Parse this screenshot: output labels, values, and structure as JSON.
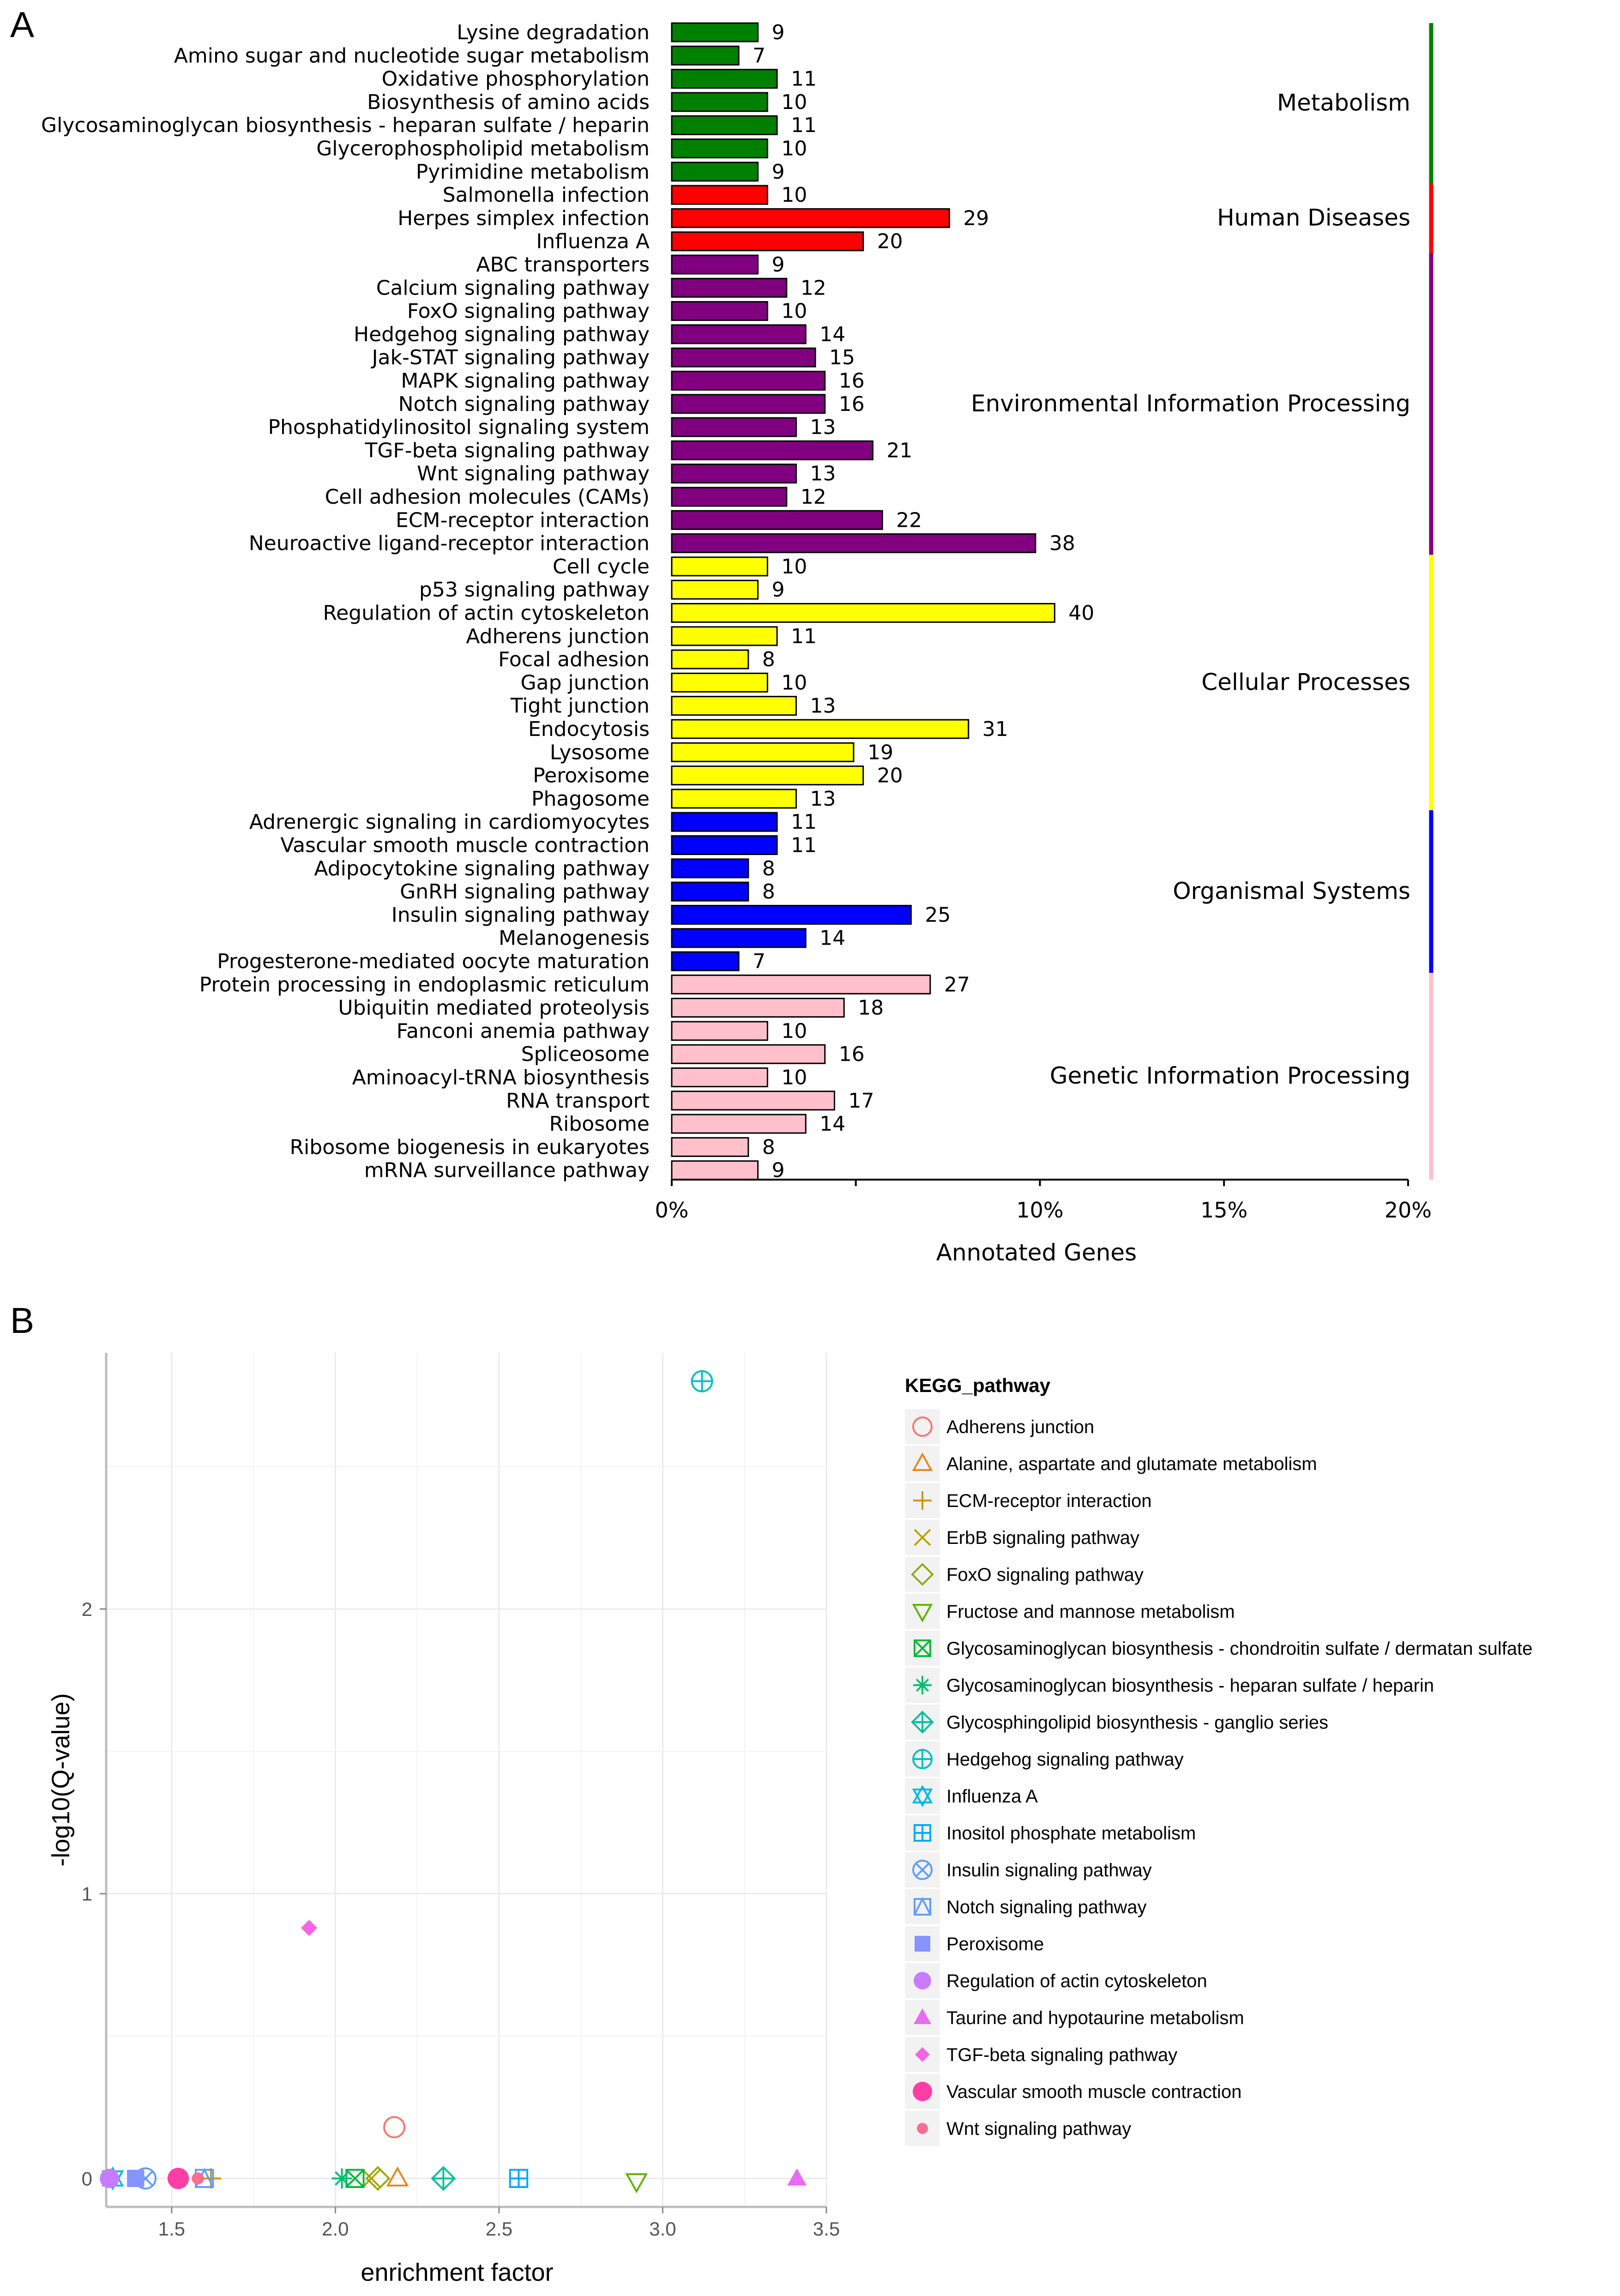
{
  "panel_labels": {
    "a": "A",
    "b": "B"
  },
  "chart_data": [
    {
      "type": "bar",
      "orientation": "horizontal",
      "xlabel": "Annotated Genes",
      "xlim": [
        0,
        20
      ],
      "x_ticks": [
        "0%",
        "10%",
        "15%",
        "20%"
      ],
      "x_tick_values": [
        0,
        10,
        15,
        20
      ],
      "groups": [
        {
          "name": "Metabolism",
          "color": "#008000",
          "rows": 7
        },
        {
          "name": "Human Diseases",
          "color": "#ff0000",
          "rows": 3
        },
        {
          "name": "Environmental Information Processing",
          "color": "#800080",
          "rows": 13
        },
        {
          "name": "Cellular Processes",
          "color": "#ffff00",
          "rows": 11
        },
        {
          "name": "Organismal Systems",
          "color": "#0000ff",
          "rows": 7
        },
        {
          "name": "Genetic Information Processing",
          "color": "#ffc0cb",
          "rows": 9
        }
      ],
      "categories": [
        "Lysine degradation",
        "Amino sugar and nucleotide sugar metabolism",
        "Oxidative phosphorylation",
        "Biosynthesis of amino acids",
        "Glycosaminoglycan biosynthesis - heparan sulfate / heparin",
        "Glycerophospholipid metabolism",
        "Pyrimidine metabolism",
        "Salmonella infection",
        "Herpes simplex infection",
        "Influenza A",
        "ABC transporters",
        "Calcium signaling pathway",
        "FoxO signaling pathway",
        "Hedgehog signaling pathway",
        "Jak-STAT signaling pathway",
        "MAPK signaling pathway",
        "Notch signaling pathway",
        "Phosphatidylinositol signaling system",
        "TGF-beta signaling pathway",
        "Wnt signaling pathway",
        "Cell adhesion molecules (CAMs)",
        "ECM-receptor interaction",
        "Neuroactive ligand-receptor interaction",
        "Cell cycle",
        "p53 signaling pathway",
        "Regulation of actin cytoskeleton",
        "Adherens junction",
        "Focal adhesion",
        "Gap junction",
        "Tight junction",
        "Endocytosis",
        "Lysosome",
        "Peroxisome",
        "Phagosome",
        "Adrenergic signaling in cardiomyocytes",
        "Vascular smooth muscle contraction",
        "Adipocytokine signaling pathway",
        "GnRH signaling pathway",
        "Insulin signaling pathway",
        "Melanogenesis",
        "Progesterone-mediated oocyte maturation",
        "Protein processing in endoplasmic reticulum",
        "Ubiquitin mediated proteolysis",
        "Fanconi anemia pathway",
        "Spliceosome",
        "Aminoacyl-tRNA biosynthesis",
        "RNA transport",
        "Ribosome",
        "Ribosome biogenesis in eukaryotes",
        "mRNA surveillance pathway"
      ],
      "values": [
        9,
        7,
        11,
        10,
        11,
        10,
        9,
        10,
        29,
        20,
        9,
        12,
        10,
        14,
        15,
        16,
        16,
        13,
        21,
        13,
        12,
        22,
        38,
        10,
        9,
        40,
        11,
        8,
        10,
        13,
        31,
        19,
        20,
        13,
        11,
        11,
        8,
        8,
        25,
        14,
        7,
        27,
        18,
        10,
        16,
        10,
        17,
        14,
        8,
        9
      ],
      "value_labels": [
        "9",
        "7",
        "11",
        "10",
        "11",
        "10",
        "9",
        "10",
        "29",
        "20",
        "9",
        "12",
        "10",
        "14",
        "15",
        "16",
        "16",
        "13",
        "21",
        "13",
        "12",
        "22",
        "38",
        "10",
        "9",
        "40",
        "11",
        "8",
        "10",
        "13",
        "31",
        "19",
        "20",
        "13",
        "11",
        "11",
        "8",
        "8",
        "25",
        "14",
        "7",
        "27",
        "18",
        "10",
        "16",
        "10",
        "17",
        "14",
        "8",
        "9"
      ],
      "percent_per_gene": 0.26
    },
    {
      "type": "scatter",
      "xlabel": "enrichment factor",
      "ylabel": "-log10(Q-value)",
      "xlim": [
        1.3,
        3.5
      ],
      "ylim": [
        -0.1,
        2.9
      ],
      "x_ticks": [
        1.5,
        2.0,
        2.5,
        3.0,
        3.5
      ],
      "x_tick_labels": [
        "1.5",
        "2.0",
        "2.5",
        "3.0",
        "3.5"
      ],
      "y_ticks": [
        0,
        1,
        2
      ],
      "y_tick_labels": [
        "0",
        "1",
        "2"
      ],
      "legend_title": "KEGG_pathway",
      "legend_position": "right",
      "series": [
        {
          "name": "Adherens junction",
          "shape": "circle-open",
          "color": "#f8766d",
          "x": 2.18,
          "y": 0.18
        },
        {
          "name": "Alanine, aspartate and glutamate metabolism",
          "shape": "triangle-open",
          "color": "#e7861b",
          "x": 2.19,
          "y": 0.0
        },
        {
          "name": "ECM-receptor interaction",
          "shape": "plus",
          "color": "#d39200",
          "x": 1.62,
          "y": 0.0
        },
        {
          "name": "ErbB signaling pathway",
          "shape": "cross",
          "color": "#b8a000",
          "x": 2.11,
          "y": 0.0
        },
        {
          "name": "FoxO signaling pathway",
          "shape": "diamond-open",
          "color": "#93aa00",
          "x": 2.13,
          "y": 0.0
        },
        {
          "name": "Fructose and mannose metabolism",
          "shape": "triangle-down-open",
          "color": "#5eb300",
          "x": 2.92,
          "y": -0.01
        },
        {
          "name": "Glycosaminoglycan biosynthesis - chondroitin sulfate / dermatan sulfate",
          "shape": "square-cross",
          "color": "#00ba38",
          "x": 2.06,
          "y": 0.0
        },
        {
          "name": "Glycosaminoglycan biosynthesis - heparan sulfate / heparin",
          "shape": "asterisk",
          "color": "#00bf74",
          "x": 2.02,
          "y": 0.0
        },
        {
          "name": "Glycosphingolipid biosynthesis - ganglio series",
          "shape": "diamond-plus",
          "color": "#00c19f",
          "x": 2.33,
          "y": 0.0
        },
        {
          "name": "Hedgehog signaling pathway",
          "shape": "circle-plus",
          "color": "#00bfc4",
          "x": 3.12,
          "y": 2.8
        },
        {
          "name": "Influenza A",
          "shape": "star-of-david",
          "color": "#00b8e7",
          "x": 1.32,
          "y": 0.0
        },
        {
          "name": "Inositol phosphate metabolism",
          "shape": "square-plus",
          "color": "#00a9ff",
          "x": 2.56,
          "y": 0.0
        },
        {
          "name": "Insulin signaling pathway",
          "shape": "circle-cross",
          "color": "#619cff",
          "x": 1.42,
          "y": 0.0
        },
        {
          "name": "Notch signaling pathway",
          "shape": "square-triangle",
          "color": "#619cff",
          "x": 1.6,
          "y": 0.0
        },
        {
          "name": "Peroxisome",
          "shape": "square",
          "color": "#8594ff",
          "x": 1.39,
          "y": 0.0
        },
        {
          "name": "Regulation of actin cytoskeleton",
          "shape": "circle",
          "color": "#c77cff",
          "x": 1.31,
          "y": 0.0
        },
        {
          "name": "Taurine and hypotaurine metabolism",
          "shape": "triangle",
          "color": "#e76bf3",
          "x": 3.41,
          "y": 0.0
        },
        {
          "name": "TGF-beta signaling pathway",
          "shape": "diamond",
          "color": "#f564e3",
          "x": 1.92,
          "y": 0.88
        },
        {
          "name": "Vascular smooth muscle contraction",
          "shape": "circle-big",
          "color": "#ff3ea5",
          "x": 1.52,
          "y": 0.0
        },
        {
          "name": "Wnt signaling pathway",
          "shape": "circle-small",
          "color": "#ff6c91",
          "x": 1.58,
          "y": 0.0
        }
      ]
    }
  ]
}
